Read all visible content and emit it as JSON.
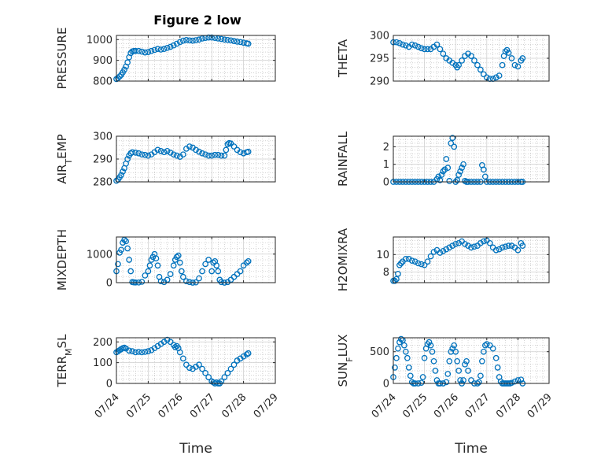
{
  "title": "Figure 2 low",
  "marker_color": "#0072BD",
  "chart_data": [
    {
      "id": "pressure",
      "type": "scatter",
      "ylabel": "PRESSURE",
      "xlim": [
        "07/24",
        "07/29"
      ],
      "ylim": [
        800,
        1020
      ],
      "xticks": [
        "07/24",
        "07/25",
        "07/26",
        "07/27",
        "07/28",
        "07/29"
      ],
      "yticks": [
        800,
        900,
        1000
      ],
      "x": [
        0.0,
        0.05,
        0.1,
        0.15,
        0.2,
        0.25,
        0.3,
        0.35,
        0.4,
        0.45,
        0.5,
        0.55,
        0.6,
        0.7,
        0.8,
        0.9,
        1.0,
        1.1,
        1.2,
        1.3,
        1.4,
        1.5,
        1.6,
        1.7,
        1.8,
        1.9,
        2.0,
        2.1,
        2.2,
        2.3,
        2.4,
        2.5,
        2.6,
        2.7,
        2.8,
        2.9,
        3.0,
        3.1,
        3.2,
        3.3,
        3.4,
        3.5,
        3.6,
        3.7,
        3.8,
        3.9,
        4.0,
        4.1,
        4.15
      ],
      "y": [
        810,
        815,
        822,
        830,
        842,
        855,
        870,
        890,
        915,
        935,
        943,
        945,
        945,
        945,
        942,
        938,
        940,
        945,
        950,
        955,
        952,
        955,
        960,
        965,
        972,
        980,
        988,
        995,
        998,
        996,
        995,
        997,
        1000,
        1005,
        1008,
        1010,
        1010,
        1008,
        1005,
        1003,
        1000,
        998,
        996,
        993,
        990,
        988,
        985,
        982,
        980
      ]
    },
    {
      "id": "theta",
      "type": "scatter",
      "ylabel": "THETA",
      "xlim": [
        "07/24",
        "07/29"
      ],
      "ylim": [
        290,
        300
      ],
      "xticks": [
        "07/24",
        "07/25",
        "07/26",
        "07/27",
        "07/28",
        "07/29"
      ],
      "yticks": [
        290,
        295,
        300
      ],
      "x": [
        0.0,
        0.1,
        0.2,
        0.3,
        0.4,
        0.5,
        0.6,
        0.7,
        0.8,
        0.9,
        1.0,
        1.1,
        1.2,
        1.3,
        1.4,
        1.5,
        1.6,
        1.7,
        1.8,
        1.9,
        2.0,
        2.05,
        2.1,
        2.2,
        2.3,
        2.4,
        2.5,
        2.6,
        2.7,
        2.8,
        2.9,
        3.0,
        3.1,
        3.2,
        3.3,
        3.4,
        3.5,
        3.55,
        3.6,
        3.65,
        3.7,
        3.8,
        3.9,
        4.0,
        4.1,
        4.15
      ],
      "y": [
        298.5,
        298.5,
        298.3,
        298.0,
        297.8,
        297.5,
        298.0,
        297.8,
        297.5,
        297.2,
        297.0,
        297.0,
        297.0,
        297.5,
        298.0,
        297.0,
        296.0,
        295.0,
        294.5,
        294.0,
        293.5,
        293.0,
        293.5,
        294.5,
        295.5,
        296.0,
        295.5,
        294.5,
        293.5,
        292.5,
        291.5,
        290.8,
        290.5,
        290.5,
        290.8,
        291.2,
        293.5,
        295.5,
        296.5,
        296.8,
        296.2,
        295.0,
        293.5,
        293.2,
        294.5,
        295.0
      ]
    },
    {
      "id": "air_temp",
      "type": "scatter",
      "ylabel": "AIR_TEMP",
      "xlim": [
        "07/24",
        "07/29"
      ],
      "ylim": [
        280,
        300
      ],
      "xticks": [
        "07/24",
        "07/25",
        "07/26",
        "07/27",
        "07/28",
        "07/29"
      ],
      "yticks": [
        280,
        290,
        300
      ],
      "x": [
        0.0,
        0.05,
        0.1,
        0.15,
        0.2,
        0.25,
        0.3,
        0.35,
        0.4,
        0.45,
        0.5,
        0.6,
        0.7,
        0.8,
        0.9,
        1.0,
        1.1,
        1.2,
        1.3,
        1.4,
        1.5,
        1.6,
        1.7,
        1.8,
        1.9,
        2.0,
        2.1,
        2.2,
        2.3,
        2.4,
        2.5,
        2.6,
        2.7,
        2.8,
        2.9,
        3.0,
        3.1,
        3.2,
        3.3,
        3.4,
        3.45,
        3.5,
        3.55,
        3.6,
        3.7,
        3.8,
        3.9,
        4.0,
        4.1,
        4.15
      ],
      "y": [
        280.5,
        281.0,
        282.0,
        283.0,
        284.5,
        286.0,
        288.0,
        290.0,
        291.5,
        292.5,
        293.0,
        292.8,
        292.5,
        292.0,
        291.8,
        291.5,
        292.0,
        293.0,
        294.0,
        293.5,
        293.0,
        293.5,
        292.8,
        292.0,
        291.5,
        291.0,
        292.0,
        294.5,
        295.5,
        295.0,
        294.0,
        293.2,
        292.5,
        292.0,
        291.5,
        291.5,
        291.8,
        291.8,
        291.5,
        291.5,
        294.0,
        296.5,
        297.0,
        296.8,
        295.5,
        294.0,
        293.0,
        292.5,
        293.0,
        293.2
      ]
    },
    {
      "id": "rainfall",
      "type": "scatter",
      "ylabel": "RAINFALL",
      "xlim": [
        "07/24",
        "07/29"
      ],
      "ylim": [
        0,
        2.6
      ],
      "xticks": [
        "07/24",
        "07/25",
        "07/26",
        "07/27",
        "07/28",
        "07/29"
      ],
      "yticks": [
        0,
        1,
        2
      ],
      "x": [
        0.0,
        0.1,
        0.2,
        0.3,
        0.4,
        0.5,
        0.6,
        0.7,
        0.8,
        0.9,
        1.0,
        1.1,
        1.2,
        1.3,
        1.4,
        1.45,
        1.5,
        1.55,
        1.6,
        1.65,
        1.7,
        1.75,
        1.8,
        1.85,
        1.9,
        1.95,
        2.0,
        2.05,
        2.1,
        2.15,
        2.2,
        2.25,
        2.3,
        2.35,
        2.4,
        2.5,
        2.6,
        2.7,
        2.8,
        2.85,
        2.9,
        2.95,
        3.0,
        3.1,
        3.2,
        3.3,
        3.4,
        3.5,
        3.6,
        3.7,
        3.8,
        3.9,
        4.0,
        4.1,
        4.15
      ],
      "y": [
        0,
        0,
        0,
        0,
        0,
        0,
        0,
        0,
        0,
        0,
        0,
        0,
        0,
        0,
        0.15,
        0.3,
        0.1,
        0.4,
        0.6,
        0.7,
        1.3,
        0.8,
        0.05,
        2.2,
        2.5,
        2.0,
        0,
        0.1,
        0.4,
        0.6,
        0.8,
        1.0,
        0.05,
        0,
        0,
        0,
        0,
        0,
        0,
        0.95,
        0.7,
        0.3,
        0,
        0,
        0,
        0,
        0,
        0,
        0,
        0,
        0,
        0,
        0,
        0,
        0
      ]
    },
    {
      "id": "mixdepth",
      "type": "scatter",
      "ylabel": "MIXDEPTH",
      "xlim": [
        "07/24",
        "07/29"
      ],
      "ylim": [
        0,
        1600
      ],
      "xticks": [
        "07/24",
        "07/25",
        "07/26",
        "07/27",
        "07/28",
        "07/29"
      ],
      "yticks": [
        0,
        1000
      ],
      "x": [
        0.0,
        0.05,
        0.1,
        0.15,
        0.2,
        0.25,
        0.3,
        0.35,
        0.4,
        0.45,
        0.5,
        0.55,
        0.6,
        0.7,
        0.8,
        0.9,
        1.0,
        1.05,
        1.1,
        1.15,
        1.2,
        1.25,
        1.3,
        1.35,
        1.4,
        1.5,
        1.6,
        1.7,
        1.8,
        1.85,
        1.9,
        1.95,
        2.0,
        2.05,
        2.1,
        2.2,
        2.3,
        2.4,
        2.5,
        2.6,
        2.7,
        2.8,
        2.9,
        3.0,
        3.05,
        3.1,
        3.15,
        3.2,
        3.25,
        3.3,
        3.4,
        3.5,
        3.6,
        3.7,
        3.8,
        3.9,
        4.0,
        4.1,
        4.15
      ],
      "y": [
        400,
        650,
        1050,
        1150,
        1400,
        1500,
        1450,
        1200,
        800,
        400,
        20,
        10,
        5,
        5,
        30,
        250,
        400,
        600,
        800,
        900,
        1000,
        850,
        600,
        200,
        50,
        20,
        100,
        300,
        600,
        800,
        900,
        950,
        700,
        400,
        200,
        50,
        20,
        0,
        10,
        150,
        400,
        650,
        800,
        400,
        700,
        750,
        600,
        400,
        100,
        20,
        0,
        20,
        100,
        200,
        300,
        400,
        600,
        700,
        750
      ]
    },
    {
      "id": "h2omixra",
      "type": "scatter",
      "ylabel": "H2OMIXRA",
      "xlim": [
        "07/24",
        "07/29"
      ],
      "ylim": [
        6.8,
        12.0
      ],
      "xticks": [
        "07/24",
        "07/25",
        "07/26",
        "07/27",
        "07/28",
        "07/29"
      ],
      "yticks": [
        8,
        10
      ],
      "x": [
        0.0,
        0.05,
        0.1,
        0.15,
        0.2,
        0.25,
        0.3,
        0.4,
        0.5,
        0.6,
        0.7,
        0.8,
        0.9,
        1.0,
        1.1,
        1.2,
        1.3,
        1.4,
        1.5,
        1.6,
        1.7,
        1.8,
        1.9,
        2.0,
        2.1,
        2.2,
        2.3,
        2.4,
        2.5,
        2.6,
        2.7,
        2.8,
        2.9,
        3.0,
        3.1,
        3.2,
        3.3,
        3.4,
        3.5,
        3.6,
        3.7,
        3.8,
        3.9,
        4.0,
        4.1,
        4.15
      ],
      "y": [
        7.0,
        7.0,
        7.2,
        7.8,
        8.8,
        9.0,
        9.2,
        9.5,
        9.5,
        9.3,
        9.2,
        9.0,
        8.9,
        8.8,
        9.2,
        9.8,
        10.3,
        10.5,
        10.2,
        10.4,
        10.6,
        10.8,
        11.0,
        11.2,
        11.3,
        11.5,
        11.2,
        11.0,
        10.8,
        10.9,
        11.0,
        11.3,
        11.5,
        11.6,
        11.3,
        10.8,
        10.5,
        10.6,
        10.8,
        10.9,
        11.0,
        11.0,
        10.8,
        10.5,
        11.3,
        11.0
      ]
    },
    {
      "id": "terr_msl",
      "type": "scatter",
      "ylabel": "TERR_MSL",
      "xlim": [
        "07/24",
        "07/29"
      ],
      "ylim": [
        0,
        220
      ],
      "xticks": [
        "07/24",
        "07/25",
        "07/26",
        "07/27",
        "07/28",
        "07/29"
      ],
      "yticks": [
        0,
        100,
        200
      ],
      "x": [
        0.0,
        0.05,
        0.1,
        0.15,
        0.2,
        0.25,
        0.3,
        0.4,
        0.5,
        0.6,
        0.7,
        0.8,
        0.9,
        1.0,
        1.1,
        1.2,
        1.3,
        1.4,
        1.5,
        1.6,
        1.7,
        1.8,
        1.85,
        1.9,
        1.95,
        2.0,
        2.1,
        2.2,
        2.3,
        2.4,
        2.5,
        2.6,
        2.7,
        2.8,
        2.9,
        3.0,
        3.05,
        3.1,
        3.15,
        3.2,
        3.25,
        3.3,
        3.4,
        3.5,
        3.6,
        3.7,
        3.8,
        3.9,
        4.0,
        4.1,
        4.15
      ],
      "y": [
        150,
        155,
        160,
        165,
        170,
        172,
        168,
        158,
        155,
        150,
        152,
        150,
        152,
        155,
        160,
        170,
        180,
        190,
        200,
        210,
        200,
        185,
        175,
        180,
        170,
        150,
        120,
        90,
        75,
        70,
        80,
        90,
        70,
        50,
        30,
        10,
        5,
        0,
        5,
        0,
        0,
        10,
        30,
        50,
        70,
        90,
        110,
        120,
        130,
        140,
        145
      ]
    },
    {
      "id": "sun_flux",
      "type": "scatter",
      "ylabel": "SUN_FLUX",
      "xlim": [
        "07/24",
        "07/29"
      ],
      "ylim": [
        0,
        720
      ],
      "xticks": [
        "07/24",
        "07/25",
        "07/26",
        "07/27",
        "07/28",
        "07/29"
      ],
      "yticks": [
        0,
        500
      ],
      "x": [
        0.0,
        0.05,
        0.1,
        0.15,
        0.2,
        0.25,
        0.3,
        0.35,
        0.4,
        0.45,
        0.5,
        0.55,
        0.6,
        0.65,
        0.7,
        0.8,
        0.9,
        0.95,
        1.0,
        1.05,
        1.1,
        1.15,
        1.2,
        1.25,
        1.3,
        1.35,
        1.4,
        1.45,
        1.5,
        1.6,
        1.7,
        1.75,
        1.8,
        1.85,
        1.9,
        1.95,
        2.0,
        2.05,
        2.1,
        2.15,
        2.2,
        2.25,
        2.3,
        2.35,
        2.4,
        2.5,
        2.6,
        2.7,
        2.75,
        2.8,
        2.85,
        2.9,
        2.95,
        3.0,
        3.1,
        3.2,
        3.3,
        3.35,
        3.4,
        3.45,
        3.5,
        3.55,
        3.6,
        3.65,
        3.7,
        3.75,
        3.8,
        3.9,
        4.0,
        4.1,
        4.15
      ],
      "y": [
        100,
        250,
        400,
        550,
        650,
        700,
        680,
        600,
        500,
        400,
        250,
        120,
        20,
        0,
        0,
        0,
        10,
        100,
        400,
        550,
        620,
        650,
        600,
        500,
        350,
        200,
        50,
        0,
        0,
        0,
        20,
        150,
        350,
        500,
        550,
        600,
        500,
        350,
        200,
        50,
        0,
        50,
        300,
        350,
        200,
        50,
        0,
        0,
        20,
        120,
        350,
        500,
        600,
        620,
        600,
        550,
        400,
        250,
        100,
        30,
        0,
        0,
        0,
        0,
        0,
        0,
        10,
        30,
        50,
        60,
        0
      ]
    }
  ]
}
